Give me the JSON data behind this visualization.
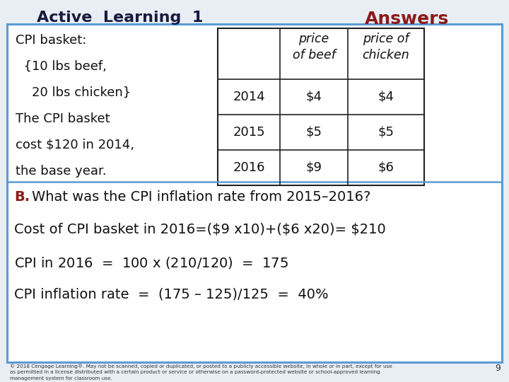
{
  "title_left": "Active  Learning  1",
  "title_right": "Answers",
  "title_right_color": "#8B1A1A",
  "title_left_color": "#1a1a3e",
  "background_color": "#e8eef4",
  "border_color": "#5b9bd5",
  "left_text_lines": [
    "CPI basket:",
    "  {10 lbs beef,",
    "    20 lbs chicken}",
    "The CPI basket",
    "cost $120 in 2014,",
    "the base year."
  ],
  "table_col_headers": [
    "",
    "price\nof beef",
    "price of\nchicken"
  ],
  "table_rows": [
    [
      "2014",
      "$4",
      "$4"
    ],
    [
      "2015",
      "$5",
      "$5"
    ],
    [
      "2016",
      "$9",
      "$6"
    ]
  ],
  "bottom_b": "B.",
  "bottom_lines": [
    "  What was the CPI inflation rate from 2015–2016?",
    "Cost of CPI basket in 2016=($9 x10)+($6 x20)= $210",
    "CPI in 2016  =  100 x ($210/$120)  =  175",
    "CPI inflation rate  =  (175 – 125)/125  =  40%"
  ],
  "footnote": "© 2018 Cengage Learning®. May not be scanned, copied or duplicated, or posted to a publicly accessible website, in whole or in part, except for use\nas permitted in a license distributed with a certain product or service or otherwise on a password-protected website or school-approved learning\nmanagement system for classroom use.",
  "page_number": "9"
}
